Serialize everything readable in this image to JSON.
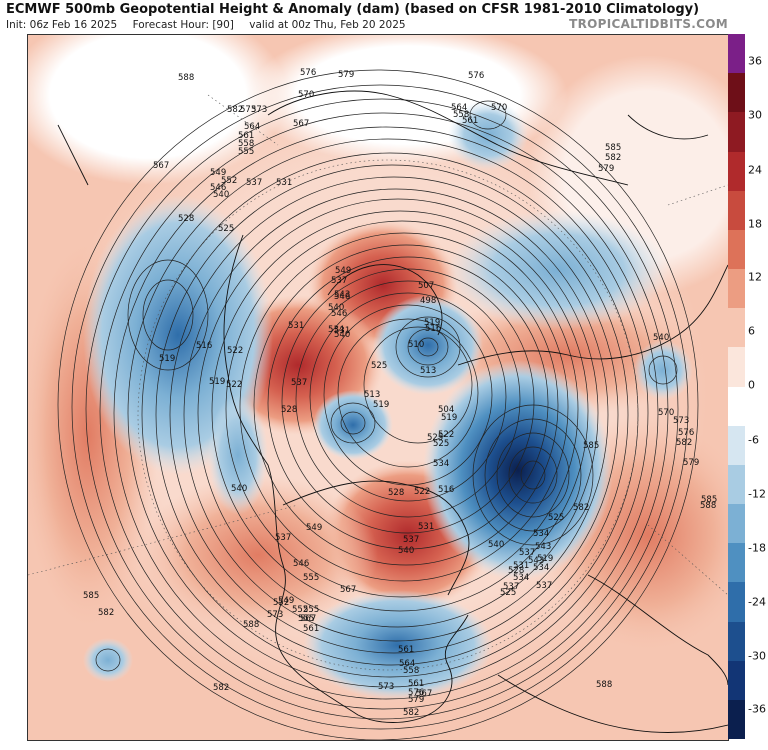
{
  "header": {
    "title": "ECMWF 500mb Geopotential Height & Anomaly (dam) (based on CFSR 1981-2010 Climatology)",
    "init": "Init: 06z Feb 16 2025",
    "forecast_hour": "Forecast Hour: [90]",
    "valid": "valid at 00z Thu, Feb 20 2025",
    "credit": "TROPICALTIDBITS.COM"
  },
  "colorbar": {
    "ticks": [
      "36",
      "30",
      "24",
      "18",
      "12",
      "6",
      "0",
      "-6",
      "-12",
      "-18",
      "-24",
      "-30",
      "-36"
    ],
    "colors": [
      "#7b1f88",
      "#6e0f18",
      "#8e1a22",
      "#b02a2c",
      "#c84b3e",
      "#dd7259",
      "#ec9d82",
      "#f6c6b2",
      "#fbe6dc",
      "#ffffff",
      "#d6e6f1",
      "#a9cce3",
      "#7cb0d4",
      "#4f90c1",
      "#2f6eaa",
      "#1d4f8e",
      "#123575",
      "#0b1f4e"
    ]
  },
  "contour_labels": [
    "588",
    "582",
    "573",
    "576",
    "579",
    "570",
    "576",
    "564",
    "558",
    "561",
    "570",
    "567",
    "573",
    "561",
    "558",
    "555",
    "564",
    "567",
    "585",
    "582",
    "579",
    "549",
    "552",
    "546",
    "540",
    "537",
    "531",
    "528",
    "525",
    "519",
    "516",
    "522",
    "519",
    "531",
    "537",
    "528",
    "522",
    "534",
    "540",
    "543",
    "546",
    "549",
    "537",
    "546",
    "540",
    "531",
    "525",
    "513",
    "519",
    "510",
    "516",
    "507",
    "498",
    "519",
    "513",
    "504",
    "519",
    "522",
    "525",
    "534",
    "537",
    "540",
    "528",
    "525",
    "516",
    "522",
    "531",
    "537",
    "549",
    "546",
    "555",
    "561",
    "540",
    "567",
    "573",
    "585",
    "588",
    "582",
    "582",
    "552",
    "555",
    "567",
    "549",
    "537",
    "543",
    "543",
    "534",
    "528",
    "534",
    "525",
    "537",
    "540",
    "537",
    "531",
    "534",
    "519",
    "525",
    "540",
    "570",
    "573",
    "576",
    "582",
    "579",
    "585",
    "588",
    "588",
    "552",
    "555",
    "561",
    "564",
    "558",
    "561",
    "567",
    "573",
    "576",
    "579",
    "582",
    "585",
    "582"
  ]
}
